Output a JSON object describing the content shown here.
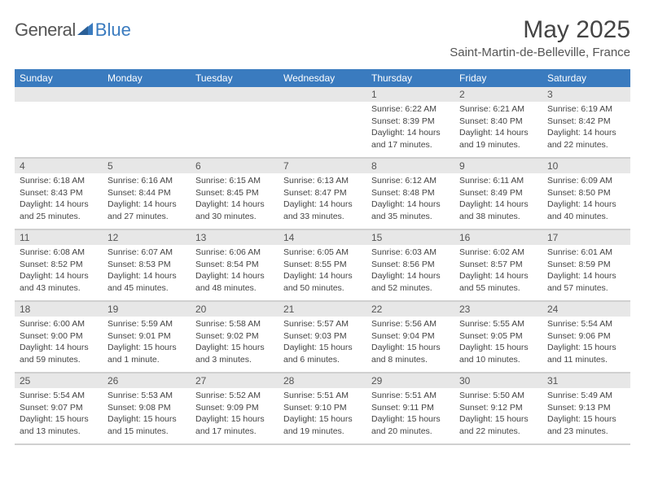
{
  "logo": {
    "text1": "General",
    "text2": "Blue"
  },
  "title": "May 2025",
  "location": "Saint-Martin-de-Belleville, France",
  "days_of_week": [
    "Sunday",
    "Monday",
    "Tuesday",
    "Wednesday",
    "Thursday",
    "Friday",
    "Saturday"
  ],
  "colors": {
    "header_bg": "#3a7bbf",
    "date_bar_bg": "#e7e7e7",
    "border": "#d0d0d0",
    "text": "#444444"
  },
  "weeks": [
    [
      {
        "date": "",
        "sunrise": "",
        "sunset": "",
        "daylight1": "",
        "daylight2": "",
        "empty": true
      },
      {
        "date": "",
        "sunrise": "",
        "sunset": "",
        "daylight1": "",
        "daylight2": "",
        "empty": true
      },
      {
        "date": "",
        "sunrise": "",
        "sunset": "",
        "daylight1": "",
        "daylight2": "",
        "empty": true
      },
      {
        "date": "",
        "sunrise": "",
        "sunset": "",
        "daylight1": "",
        "daylight2": "",
        "empty": true
      },
      {
        "date": "1",
        "sunrise": "Sunrise: 6:22 AM",
        "sunset": "Sunset: 8:39 PM",
        "daylight1": "Daylight: 14 hours",
        "daylight2": "and 17 minutes."
      },
      {
        "date": "2",
        "sunrise": "Sunrise: 6:21 AM",
        "sunset": "Sunset: 8:40 PM",
        "daylight1": "Daylight: 14 hours",
        "daylight2": "and 19 minutes."
      },
      {
        "date": "3",
        "sunrise": "Sunrise: 6:19 AM",
        "sunset": "Sunset: 8:42 PM",
        "daylight1": "Daylight: 14 hours",
        "daylight2": "and 22 minutes."
      }
    ],
    [
      {
        "date": "4",
        "sunrise": "Sunrise: 6:18 AM",
        "sunset": "Sunset: 8:43 PM",
        "daylight1": "Daylight: 14 hours",
        "daylight2": "and 25 minutes."
      },
      {
        "date": "5",
        "sunrise": "Sunrise: 6:16 AM",
        "sunset": "Sunset: 8:44 PM",
        "daylight1": "Daylight: 14 hours",
        "daylight2": "and 27 minutes."
      },
      {
        "date": "6",
        "sunrise": "Sunrise: 6:15 AM",
        "sunset": "Sunset: 8:45 PM",
        "daylight1": "Daylight: 14 hours",
        "daylight2": "and 30 minutes."
      },
      {
        "date": "7",
        "sunrise": "Sunrise: 6:13 AM",
        "sunset": "Sunset: 8:47 PM",
        "daylight1": "Daylight: 14 hours",
        "daylight2": "and 33 minutes."
      },
      {
        "date": "8",
        "sunrise": "Sunrise: 6:12 AM",
        "sunset": "Sunset: 8:48 PM",
        "daylight1": "Daylight: 14 hours",
        "daylight2": "and 35 minutes."
      },
      {
        "date": "9",
        "sunrise": "Sunrise: 6:11 AM",
        "sunset": "Sunset: 8:49 PM",
        "daylight1": "Daylight: 14 hours",
        "daylight2": "and 38 minutes."
      },
      {
        "date": "10",
        "sunrise": "Sunrise: 6:09 AM",
        "sunset": "Sunset: 8:50 PM",
        "daylight1": "Daylight: 14 hours",
        "daylight2": "and 40 minutes."
      }
    ],
    [
      {
        "date": "11",
        "sunrise": "Sunrise: 6:08 AM",
        "sunset": "Sunset: 8:52 PM",
        "daylight1": "Daylight: 14 hours",
        "daylight2": "and 43 minutes."
      },
      {
        "date": "12",
        "sunrise": "Sunrise: 6:07 AM",
        "sunset": "Sunset: 8:53 PM",
        "daylight1": "Daylight: 14 hours",
        "daylight2": "and 45 minutes."
      },
      {
        "date": "13",
        "sunrise": "Sunrise: 6:06 AM",
        "sunset": "Sunset: 8:54 PM",
        "daylight1": "Daylight: 14 hours",
        "daylight2": "and 48 minutes."
      },
      {
        "date": "14",
        "sunrise": "Sunrise: 6:05 AM",
        "sunset": "Sunset: 8:55 PM",
        "daylight1": "Daylight: 14 hours",
        "daylight2": "and 50 minutes."
      },
      {
        "date": "15",
        "sunrise": "Sunrise: 6:03 AM",
        "sunset": "Sunset: 8:56 PM",
        "daylight1": "Daylight: 14 hours",
        "daylight2": "and 52 minutes."
      },
      {
        "date": "16",
        "sunrise": "Sunrise: 6:02 AM",
        "sunset": "Sunset: 8:57 PM",
        "daylight1": "Daylight: 14 hours",
        "daylight2": "and 55 minutes."
      },
      {
        "date": "17",
        "sunrise": "Sunrise: 6:01 AM",
        "sunset": "Sunset: 8:59 PM",
        "daylight1": "Daylight: 14 hours",
        "daylight2": "and 57 minutes."
      }
    ],
    [
      {
        "date": "18",
        "sunrise": "Sunrise: 6:00 AM",
        "sunset": "Sunset: 9:00 PM",
        "daylight1": "Daylight: 14 hours",
        "daylight2": "and 59 minutes."
      },
      {
        "date": "19",
        "sunrise": "Sunrise: 5:59 AM",
        "sunset": "Sunset: 9:01 PM",
        "daylight1": "Daylight: 15 hours",
        "daylight2": "and 1 minute."
      },
      {
        "date": "20",
        "sunrise": "Sunrise: 5:58 AM",
        "sunset": "Sunset: 9:02 PM",
        "daylight1": "Daylight: 15 hours",
        "daylight2": "and 3 minutes."
      },
      {
        "date": "21",
        "sunrise": "Sunrise: 5:57 AM",
        "sunset": "Sunset: 9:03 PM",
        "daylight1": "Daylight: 15 hours",
        "daylight2": "and 6 minutes."
      },
      {
        "date": "22",
        "sunrise": "Sunrise: 5:56 AM",
        "sunset": "Sunset: 9:04 PM",
        "daylight1": "Daylight: 15 hours",
        "daylight2": "and 8 minutes."
      },
      {
        "date": "23",
        "sunrise": "Sunrise: 5:55 AM",
        "sunset": "Sunset: 9:05 PM",
        "daylight1": "Daylight: 15 hours",
        "daylight2": "and 10 minutes."
      },
      {
        "date": "24",
        "sunrise": "Sunrise: 5:54 AM",
        "sunset": "Sunset: 9:06 PM",
        "daylight1": "Daylight: 15 hours",
        "daylight2": "and 11 minutes."
      }
    ],
    [
      {
        "date": "25",
        "sunrise": "Sunrise: 5:54 AM",
        "sunset": "Sunset: 9:07 PM",
        "daylight1": "Daylight: 15 hours",
        "daylight2": "and 13 minutes."
      },
      {
        "date": "26",
        "sunrise": "Sunrise: 5:53 AM",
        "sunset": "Sunset: 9:08 PM",
        "daylight1": "Daylight: 15 hours",
        "daylight2": "and 15 minutes."
      },
      {
        "date": "27",
        "sunrise": "Sunrise: 5:52 AM",
        "sunset": "Sunset: 9:09 PM",
        "daylight1": "Daylight: 15 hours",
        "daylight2": "and 17 minutes."
      },
      {
        "date": "28",
        "sunrise": "Sunrise: 5:51 AM",
        "sunset": "Sunset: 9:10 PM",
        "daylight1": "Daylight: 15 hours",
        "daylight2": "and 19 minutes."
      },
      {
        "date": "29",
        "sunrise": "Sunrise: 5:51 AM",
        "sunset": "Sunset: 9:11 PM",
        "daylight1": "Daylight: 15 hours",
        "daylight2": "and 20 minutes."
      },
      {
        "date": "30",
        "sunrise": "Sunrise: 5:50 AM",
        "sunset": "Sunset: 9:12 PM",
        "daylight1": "Daylight: 15 hours",
        "daylight2": "and 22 minutes."
      },
      {
        "date": "31",
        "sunrise": "Sunrise: 5:49 AM",
        "sunset": "Sunset: 9:13 PM",
        "daylight1": "Daylight: 15 hours",
        "daylight2": "and 23 minutes."
      }
    ]
  ]
}
